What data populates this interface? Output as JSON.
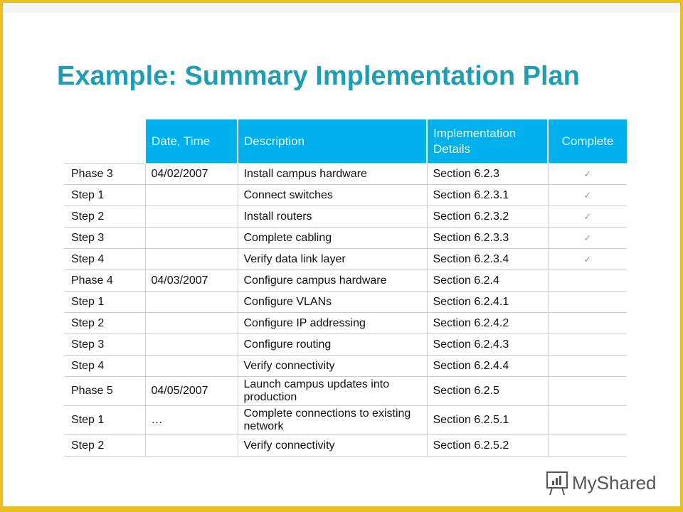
{
  "title": "Example: Summary Implementation Plan",
  "headers": [
    "",
    "Date, Time",
    "Description",
    "Implementation Details",
    "Complete"
  ],
  "rows": [
    {
      "item": "Phase 3",
      "date": "04/02/2007",
      "desc": "Install campus hardware",
      "impl": "Section 6.2.3",
      "complete": "✓"
    },
    {
      "item": "Step 1",
      "date": "",
      "desc": "Connect switches",
      "impl": "Section 6.2.3.1",
      "complete": "✓"
    },
    {
      "item": "Step 2",
      "date": "",
      "desc": "Install routers",
      "impl": "Section 6.2.3.2",
      "complete": "✓"
    },
    {
      "item": "Step 3",
      "date": "",
      "desc": "Complete cabling",
      "impl": "Section 6.2.3.3",
      "complete": "✓"
    },
    {
      "item": "Step 4",
      "date": "",
      "desc": "Verify data link layer",
      "impl": "Section 6.2.3.4",
      "complete": "✓"
    },
    {
      "item": "Phase 4",
      "date": "04/03/2007",
      "desc": "Configure campus hardware",
      "impl": "Section 6.2.4",
      "complete": ""
    },
    {
      "item": "Step 1",
      "date": "",
      "desc": "Configure VLANs",
      "impl": "Section 6.2.4.1",
      "complete": ""
    },
    {
      "item": "Step 2",
      "date": "",
      "desc": "Configure IP addressing",
      "impl": "Section 6.2.4.2",
      "complete": ""
    },
    {
      "item": "Step 3",
      "date": "",
      "desc": "Configure routing",
      "impl": "Section 6.2.4.3",
      "complete": ""
    },
    {
      "item": "Step 4",
      "date": "",
      "desc": "Verify connectivity",
      "impl": "Section 6.2.4.4",
      "complete": ""
    },
    {
      "item": "Phase 5",
      "date": "04/05/2007",
      "desc": "Launch campus updates into production",
      "impl": "Section 6.2.5",
      "complete": ""
    },
    {
      "item": "Step 1",
      "date": "…",
      "desc": "Complete connections to existing network",
      "impl": "Section 6.2.5.1",
      "complete": ""
    },
    {
      "item": "Step 2",
      "date": "",
      "desc": "Verify connectivity",
      "impl": "Section 6.2.5.2",
      "complete": ""
    }
  ],
  "logo": "MyShared"
}
